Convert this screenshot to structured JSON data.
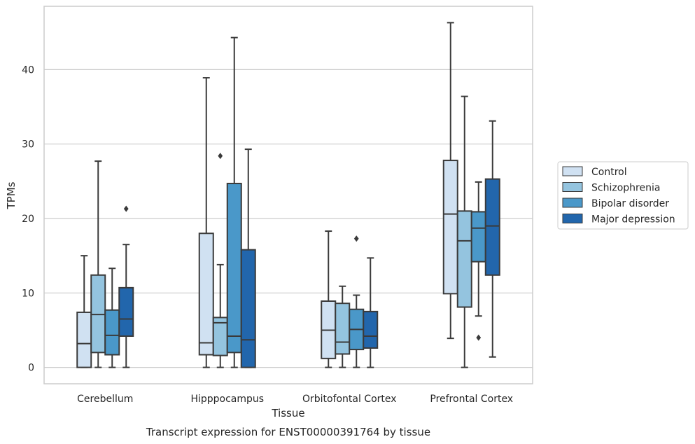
{
  "chart_data": {
    "type": "box",
    "xlabel": "Tissue",
    "ylabel": "TPMs",
    "caption": "Transcript expression for ENST00000391764 by tissue",
    "ylim": [
      -2.2,
      48.5
    ],
    "yticks": [
      0,
      10,
      20,
      30,
      40
    ],
    "grid": true,
    "legend_placement": "right",
    "categories": [
      "Cerebellum",
      "Hipppocampus",
      "Orbitofontal Cortex",
      "Prefrontal Cortex"
    ],
    "series": [
      {
        "name": "Control",
        "color": "#d0e1f2",
        "boxes": [
          {
            "whislo": 0,
            "q1": 0,
            "med": 3.2,
            "q3": 7.4,
            "whishi": 15.0,
            "fliers": []
          },
          {
            "whislo": 0,
            "q1": 1.7,
            "med": 3.3,
            "q3": 18.0,
            "whishi": 38.9,
            "fliers": []
          },
          {
            "whislo": 0,
            "q1": 1.2,
            "med": 5.0,
            "q3": 8.9,
            "whishi": 18.3,
            "fliers": []
          },
          {
            "whislo": 3.9,
            "q1": 9.9,
            "med": 20.6,
            "q3": 27.8,
            "whishi": 46.3,
            "fliers": []
          }
        ]
      },
      {
        "name": "Schizophrenia",
        "color": "#94c4df",
        "boxes": [
          {
            "whislo": 0,
            "q1": 2.0,
            "med": 7.1,
            "q3": 12.4,
            "whishi": 27.7,
            "fliers": []
          },
          {
            "whislo": 0,
            "q1": 1.6,
            "med": 6.0,
            "q3": 6.7,
            "whishi": 13.8,
            "fliers": [
              28.4
            ]
          },
          {
            "whislo": 0,
            "q1": 1.8,
            "med": 3.4,
            "q3": 8.6,
            "whishi": 10.9,
            "fliers": []
          },
          {
            "whislo": 0,
            "q1": 8.1,
            "med": 17.0,
            "q3": 21.0,
            "whishi": 36.4,
            "fliers": []
          }
        ]
      },
      {
        "name": "Bipolar disorder",
        "color": "#4a98c9",
        "boxes": [
          {
            "whislo": 0,
            "q1": 1.7,
            "med": 4.3,
            "q3": 7.7,
            "whishi": 13.3,
            "fliers": []
          },
          {
            "whislo": 0,
            "q1": 2.0,
            "med": 4.2,
            "q3": 24.7,
            "whishi": 44.3,
            "fliers": []
          },
          {
            "whislo": 0,
            "q1": 2.4,
            "med": 5.1,
            "q3": 7.8,
            "whishi": 9.7,
            "fliers": [
              17.3
            ]
          },
          {
            "whislo": 6.9,
            "q1": 14.2,
            "med": 18.7,
            "q3": 20.9,
            "whishi": 24.9,
            "fliers": [
              4.0
            ]
          }
        ]
      },
      {
        "name": "Major depression",
        "color": "#2266ac",
        "boxes": [
          {
            "whislo": 0,
            "q1": 4.2,
            "med": 6.5,
            "q3": 10.7,
            "whishi": 16.5,
            "fliers": [
              21.3
            ]
          },
          {
            "whislo": 0,
            "q1": 0,
            "med": 3.7,
            "q3": 15.8,
            "whishi": 29.3,
            "fliers": []
          },
          {
            "whislo": 0,
            "q1": 2.6,
            "med": 4.2,
            "q3": 7.5,
            "whishi": 14.7,
            "fliers": []
          },
          {
            "whislo": 1.4,
            "q1": 12.4,
            "med": 19.0,
            "q3": 25.3,
            "whishi": 33.1,
            "fliers": []
          }
        ]
      }
    ]
  },
  "colors": {
    "box_edge": "#3a3a3a",
    "grid": "#cccccc",
    "frame": "#cccccc",
    "text": "#262626"
  }
}
